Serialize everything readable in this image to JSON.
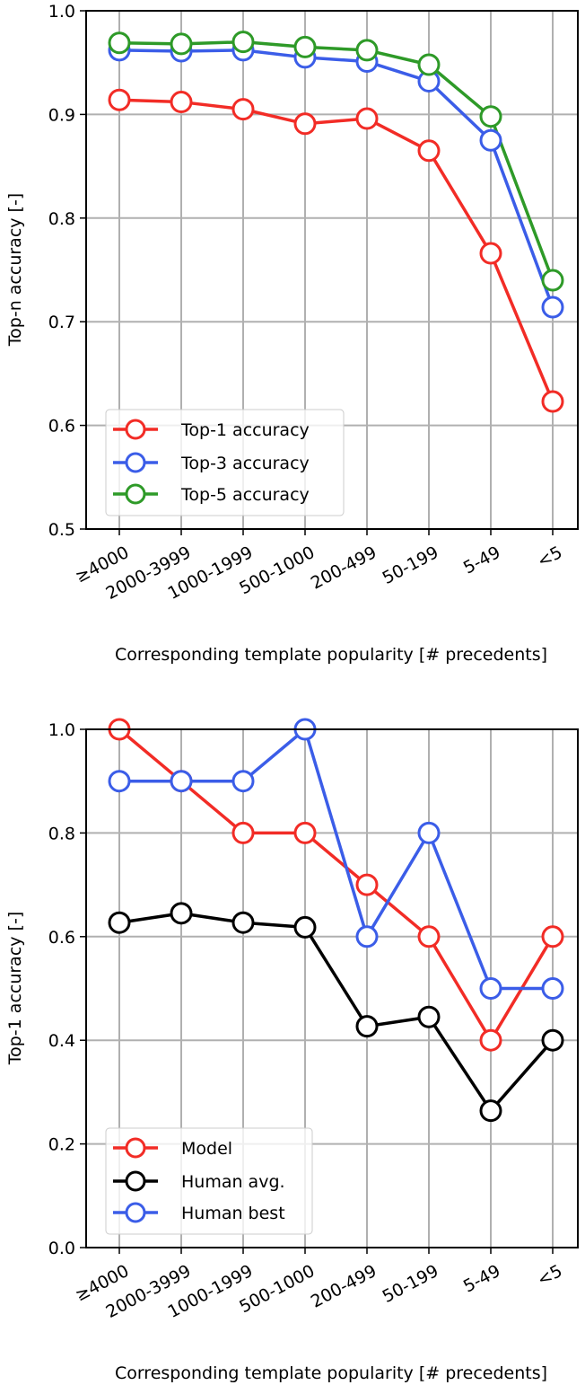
{
  "chart_data": [
    {
      "type": "line",
      "categories": [
        "≥4000",
        "2000-3999",
        "1000-1999",
        "500-1000",
        "200-499",
        "50-199",
        "5-49",
        "<5"
      ],
      "xlabel": "Corresponding template popularity [# precedents]",
      "ylabel": "Top-n accuracy [-]",
      "ylim": [
        0.5,
        1.0
      ],
      "yticks": [
        "0.5",
        "0.6",
        "0.7",
        "0.8",
        "0.9",
        "1.0"
      ],
      "grid": true,
      "legend_position": "lower-left",
      "series": [
        {
          "name": "Top-1 accuracy",
          "color": "#f22c26",
          "values": [
            0.914,
            0.912,
            0.905,
            0.891,
            0.896,
            0.865,
            0.766,
            0.623
          ]
        },
        {
          "name": "Top-3 accuracy",
          "color": "#3b5de8",
          "values": [
            0.962,
            0.961,
            0.962,
            0.955,
            0.951,
            0.932,
            0.875,
            0.714
          ]
        },
        {
          "name": "Top-5 accuracy",
          "color": "#2e9a28",
          "values": [
            0.969,
            0.968,
            0.97,
            0.965,
            0.962,
            0.948,
            0.898,
            0.74
          ]
        }
      ]
    },
    {
      "type": "line",
      "categories": [
        "≥4000",
        "2000-3999",
        "1000-1999",
        "500-1000",
        "200-499",
        "50-199",
        "5-49",
        "<5"
      ],
      "xlabel": "Corresponding template popularity [# precedents]",
      "ylabel": "Top-1 accuracy [-]",
      "ylim": [
        0.0,
        1.0
      ],
      "yticks": [
        "0.0",
        "0.2",
        "0.4",
        "0.6",
        "0.8",
        "1.0"
      ],
      "grid": true,
      "legend_position": "lower-left",
      "series": [
        {
          "name": "Model",
          "color": "#f22c26",
          "values": [
            1.0,
            0.9,
            0.8,
            0.8,
            0.7,
            0.6,
            0.4,
            0.6
          ]
        },
        {
          "name": "Human avg.",
          "color": "#000000",
          "values": [
            0.627,
            0.645,
            0.627,
            0.618,
            0.427,
            0.445,
            0.264,
            0.4
          ]
        },
        {
          "name": "Human best",
          "color": "#3b5de8",
          "values": [
            0.9,
            0.9,
            0.9,
            1.0,
            0.6,
            0.8,
            0.5,
            0.5
          ]
        }
      ]
    }
  ]
}
